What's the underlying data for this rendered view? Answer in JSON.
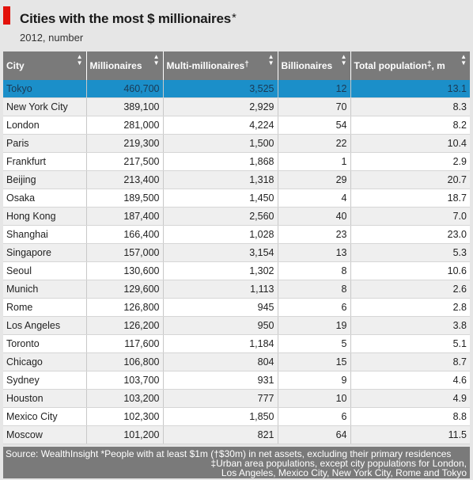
{
  "title": "Cities with the most $ millionaires",
  "title_mark": "*",
  "subtitle": "2012, number",
  "chart_data": {
    "type": "table",
    "columns": [
      {
        "label": "City",
        "sup": ""
      },
      {
        "label": "Millionaires",
        "sup": ""
      },
      {
        "label": "Multi-millionaires",
        "sup": "†"
      },
      {
        "label": "Billionaires",
        "sup": ""
      },
      {
        "label": "Total population",
        "sup": "‡",
        "suffix": ", m"
      }
    ],
    "highlighted_row": "Tokyo",
    "rows": [
      [
        "Tokyo",
        "460,700",
        "3,525",
        "12",
        "13.1"
      ],
      [
        "New York City",
        "389,100",
        "2,929",
        "70",
        "8.3"
      ],
      [
        "London",
        "281,000",
        "4,224",
        "54",
        "8.2"
      ],
      [
        "Paris",
        "219,300",
        "1,500",
        "22",
        "10.4"
      ],
      [
        "Frankfurt",
        "217,500",
        "1,868",
        "1",
        "2.9"
      ],
      [
        "Beijing",
        "213,400",
        "1,318",
        "29",
        "20.7"
      ],
      [
        "Osaka",
        "189,500",
        "1,450",
        "4",
        "18.7"
      ],
      [
        "Hong Kong",
        "187,400",
        "2,560",
        "40",
        "7.0"
      ],
      [
        "Shanghai",
        "166,400",
        "1,028",
        "23",
        "23.0"
      ],
      [
        "Singapore",
        "157,000",
        "3,154",
        "13",
        "5.3"
      ],
      [
        "Seoul",
        "130,600",
        "1,302",
        "8",
        "10.6"
      ],
      [
        "Munich",
        "129,600",
        "1,113",
        "8",
        "2.6"
      ],
      [
        "Rome",
        "126,800",
        "945",
        "6",
        "2.8"
      ],
      [
        "Los Angeles",
        "126,200",
        "950",
        "19",
        "3.8"
      ],
      [
        "Toronto",
        "117,600",
        "1,184",
        "5",
        "5.1"
      ],
      [
        "Chicago",
        "106,800",
        "804",
        "15",
        "8.7"
      ],
      [
        "Sydney",
        "103,700",
        "931",
        "9",
        "4.6"
      ],
      [
        "Houston",
        "103,200",
        "777",
        "10",
        "4.9"
      ],
      [
        "Mexico City",
        "102,300",
        "1,850",
        "6",
        "8.8"
      ],
      [
        "Moscow",
        "101,200",
        "821",
        "64",
        "11.5"
      ]
    ]
  },
  "footer": {
    "line1": "Source: WealthInsight  *People with at least $1m (†$30m) in net assets, excluding their primary residences",
    "line2": "‡Urban area populations, except city populations for London,",
    "line3": "Los Angeles, Mexico City, New York City, Rome and Tokyo"
  },
  "colors": {
    "accent": "#e3120b",
    "header_bg": "#7a7a7a",
    "highlight": "#1b8fc9",
    "background": "#e6e6e6"
  },
  "sort_icon": "sort-arrows-icon"
}
